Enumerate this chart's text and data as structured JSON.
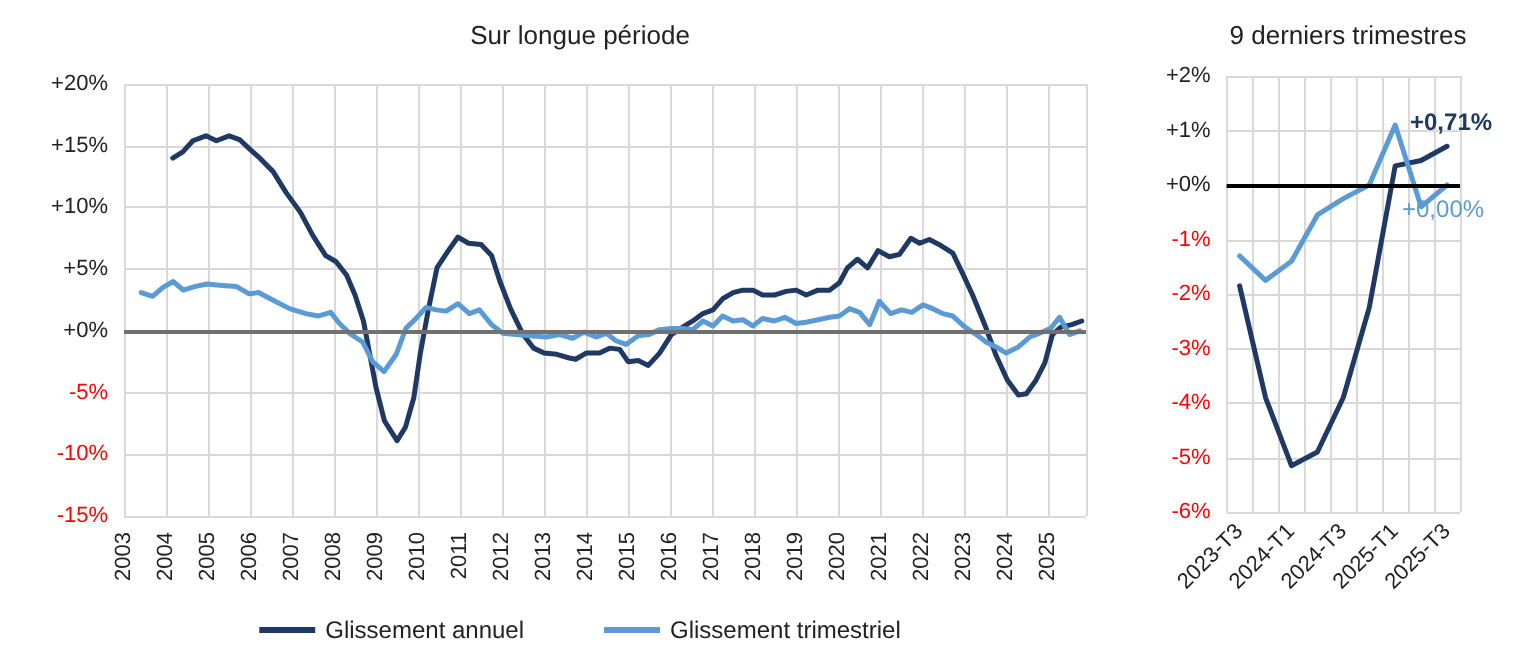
{
  "chart_data": [
    {
      "type": "line",
      "title": "Sur longue période",
      "xlim": [
        2003,
        2025.9
      ],
      "xticks": [
        2003,
        2004,
        2005,
        2006,
        2007,
        2008,
        2009,
        2010,
        2011,
        2012,
        2013,
        2014,
        2015,
        2016,
        2017,
        2018,
        2019,
        2020,
        2021,
        2022,
        2023,
        2024,
        2025
      ],
      "ylim": [
        -15,
        20
      ],
      "yticks": [
        {
          "value": -15,
          "label": "-15%"
        },
        {
          "value": -10,
          "label": "-10%"
        },
        {
          "value": -5,
          "label": "-5%"
        },
        {
          "value": 0,
          "label": "+0%"
        },
        {
          "value": 5,
          "label": "+5%"
        },
        {
          "value": 10,
          "label": "+10%"
        },
        {
          "value": 15,
          "label": "+15%"
        },
        {
          "value": 20,
          "label": "+20%"
        }
      ],
      "grid": true,
      "legend": "bottom",
      "marker": "none",
      "line_style": "solid",
      "ref_lines": [
        {
          "axis": "y",
          "value": 0,
          "color": "#707070"
        }
      ],
      "series": [
        {
          "name": "Glissement annuel",
          "color": "#1f3864",
          "x": [
            2004.16,
            2004.4,
            2004.64,
            2004.95,
            2005.2,
            2005.5,
            2005.75,
            2006,
            2006.2,
            2006.55,
            2006.86,
            2007.2,
            2007.5,
            2007.8,
            2008.05,
            2008.3,
            2008.5,
            2008.7,
            2008.85,
            2009,
            2009.2,
            2009.5,
            2009.7,
            2009.9,
            2010.05,
            2010.25,
            2010.45,
            2010.7,
            2010.95,
            2011.2,
            2011.5,
            2011.75,
            2011.95,
            2012.2,
            2012.5,
            2012.75,
            2013,
            2013.3,
            2013.6,
            2013.75,
            2014,
            2014.32,
            2014.56,
            2014.8,
            2015,
            2015.24,
            2015.48,
            2015.75,
            2016.03,
            2016.3,
            2016.54,
            2016.78,
            2017.02,
            2017.25,
            2017.5,
            2017.73,
            2017.97,
            2018.2,
            2018.48,
            2018.76,
            2019,
            2019.24,
            2019.52,
            2019.8,
            2020.03,
            2020.22,
            2020.46,
            2020.7,
            2020.95,
            2021.22,
            2021.46,
            2021.73,
            2021.94,
            2022.17,
            2022.4,
            2022.73,
            2022.97,
            2023.2,
            2023.49,
            2023.76,
            2024.03,
            2024.29,
            2024.48,
            2024.71,
            2024.92,
            2025.1,
            2025.3,
            2025.56,
            2025.8
          ],
          "values": [
            14.0,
            14.5,
            15.4,
            15.8,
            15.4,
            15.8,
            15.5,
            14.7,
            14.1,
            12.9,
            11.2,
            9.6,
            7.7,
            6.1,
            5.6,
            4.5,
            2.9,
            0.8,
            -1.9,
            -4.6,
            -7.3,
            -8.9,
            -7.8,
            -5.4,
            -1.9,
            1.8,
            5.1,
            6.4,
            7.6,
            7.1,
            7.0,
            6.1,
            4.0,
            1.8,
            -0.3,
            -1.4,
            -1.8,
            -1.9,
            -2.2,
            -2.3,
            -1.8,
            -1.8,
            -1.4,
            -1.5,
            -2.5,
            -2.4,
            -2.8,
            -1.8,
            -0.3,
            0.3,
            0.8,
            1.4,
            1.7,
            2.6,
            3.1,
            3.3,
            3.3,
            2.9,
            2.9,
            3.2,
            3.3,
            2.9,
            3.3,
            3.3,
            3.9,
            5.1,
            5.8,
            5.1,
            6.5,
            6.0,
            6.2,
            7.5,
            7.1,
            7.4,
            7.0,
            6.3,
            4.6,
            2.9,
            0.5,
            -2.0,
            -4.0,
            -5.2,
            -5.1,
            -4.0,
            -2.6,
            -0.3,
            0.3,
            0.5,
            0.8
          ]
        },
        {
          "name": "Glissement trimestriel",
          "color": "#5b9bd5",
          "x": [
            2003.41,
            2003.68,
            2003.92,
            2004.17,
            2004.41,
            2004.7,
            2004.98,
            2005.27,
            2005.67,
            2005.98,
            2006.2,
            2006.54,
            2006.94,
            2007.33,
            2007.62,
            2007.92,
            2008.13,
            2008.37,
            2008.68,
            2008.92,
            2009.19,
            2009.48,
            2009.71,
            2009.95,
            2010.19,
            2010.43,
            2010.67,
            2010.95,
            2011.22,
            2011.46,
            2011.75,
            2012.02,
            2012.33,
            2012.65,
            2013.05,
            2013.37,
            2013.68,
            2013.95,
            2014.24,
            2014.48,
            2014.71,
            2014.95,
            2015.24,
            2015.5,
            2015.75,
            2016.03,
            2016.3,
            2016.54,
            2016.78,
            2017.02,
            2017.25,
            2017.5,
            2017.73,
            2017.97,
            2018.2,
            2018.48,
            2018.73,
            2019,
            2019.24,
            2019.52,
            2019.8,
            2020.03,
            2020.27,
            2020.51,
            2020.75,
            2020.98,
            2021.25,
            2021.51,
            2021.75,
            2022.02,
            2022.25,
            2022.49,
            2022.73,
            2023.02,
            2023.29,
            2023.52,
            2023.76,
            2024,
            2024.29,
            2024.56,
            2024.79,
            2025.06,
            2025.27,
            2025.51,
            2025.75
          ],
          "values": [
            3.1,
            2.8,
            3.5,
            4.0,
            3.3,
            3.6,
            3.8,
            3.7,
            3.6,
            3.0,
            3.1,
            2.5,
            1.8,
            1.4,
            1.2,
            1.5,
            0.6,
            -0.2,
            -0.9,
            -2.5,
            -3.3,
            -1.9,
            0.2,
            1.0,
            1.9,
            1.7,
            1.6,
            2.2,
            1.4,
            1.7,
            0.5,
            -0.2,
            -0.3,
            -0.4,
            -0.5,
            -0.3,
            -0.6,
            -0.1,
            -0.5,
            -0.2,
            -0.8,
            -1.1,
            -0.4,
            -0.3,
            0.1,
            0.2,
            0.2,
            0.1,
            0.8,
            0.4,
            1.2,
            0.8,
            0.9,
            0.4,
            1.0,
            0.8,
            1.1,
            0.6,
            0.7,
            0.9,
            1.1,
            1.2,
            1.8,
            1.5,
            0.5,
            2.4,
            1.4,
            1.7,
            1.5,
            2.1,
            1.8,
            1.4,
            1.2,
            0.3,
            -0.3,
            -0.9,
            -1.3,
            -1.8,
            -1.3,
            -0.5,
            -0.2,
            0.2,
            1.1,
            -0.3,
            0.0
          ]
        }
      ]
    },
    {
      "type": "line",
      "title": "9 derniers trimestres",
      "categories": [
        "2023-T3",
        null,
        "2024-T1",
        null,
        "2024-T3",
        null,
        "2025-T1",
        null,
        "2025-T3"
      ],
      "ylim": [
        -6,
        2
      ],
      "yticks": [
        {
          "value": -6,
          "label": "-6%"
        },
        {
          "value": -5,
          "label": "-5%"
        },
        {
          "value": -4,
          "label": "-4%"
        },
        {
          "value": -3,
          "label": "-3%"
        },
        {
          "value": -2,
          "label": "-2%"
        },
        {
          "value": -1,
          "label": "-1%"
        },
        {
          "value": 0,
          "label": "+0%"
        },
        {
          "value": 1,
          "label": "+1%"
        },
        {
          "value": 2,
          "label": "+2%"
        }
      ],
      "grid": true,
      "legend": false,
      "marker": "none",
      "line_style": "solid",
      "ref_lines": [
        {
          "axis": "y",
          "value": 0,
          "color": "#000000"
        }
      ],
      "series": [
        {
          "color": "#1f3864",
          "values": [
            -1.85,
            -3.9,
            -5.15,
            -4.9,
            -3.9,
            -2.25,
            0.35,
            0.45,
            0.71
          ],
          "value_labels": [
            null,
            null,
            null,
            null,
            null,
            null,
            null,
            null,
            "+0,71%"
          ]
        },
        {
          "color": "#5b9bd5",
          "values": [
            -1.3,
            -1.75,
            -1.4,
            -0.55,
            -0.25,
            0.0,
            1.1,
            -0.4,
            0.0
          ],
          "value_labels": [
            null,
            null,
            null,
            null,
            null,
            null,
            null,
            null,
            "+0,00%"
          ]
        }
      ]
    }
  ]
}
